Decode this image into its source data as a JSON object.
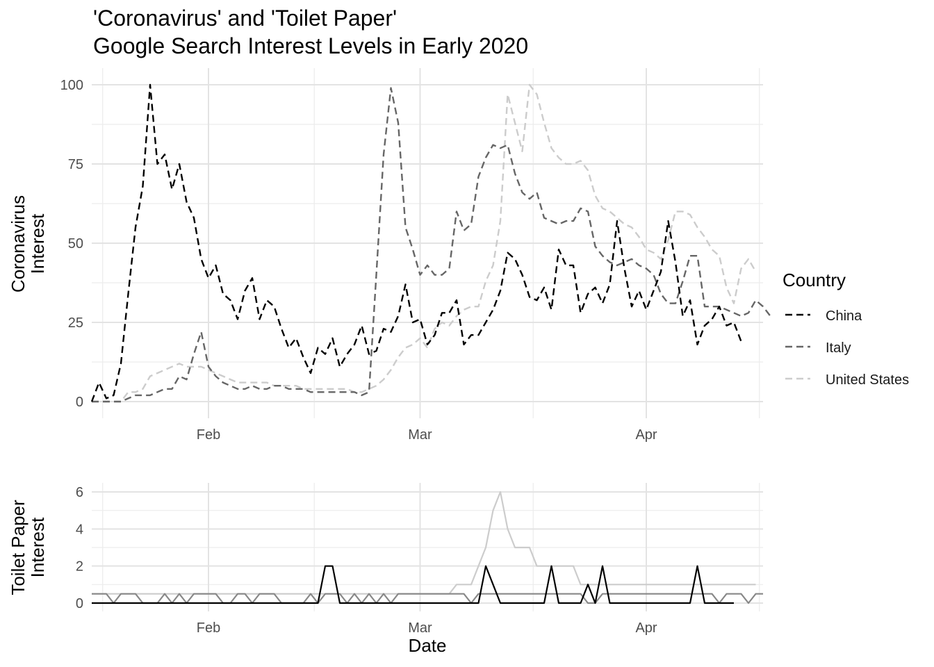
{
  "chart_data": [
    {
      "type": "line",
      "title": "'Coronavirus' and 'Toilet Paper'",
      "subtitle": "Google Search Interest Levels in Early 2020",
      "xlabel": "",
      "ylabel": "Coronavirus Interest",
      "ylabel_lines": [
        "Coronavirus",
        "Interest"
      ],
      "ylim": [
        0,
        100
      ],
      "yticks": [
        0,
        25,
        50,
        75,
        100
      ],
      "ytick_labels": [
        "0",
        "25",
        "50",
        "75",
        "100"
      ],
      "xlim": [
        "2020-01-16",
        "2020-04-17"
      ],
      "xticks": [
        "2020-02-01",
        "2020-03-01",
        "2020-04-01"
      ],
      "xtick_labels": [
        "Feb",
        "Mar",
        "Apr"
      ],
      "grid": true,
      "line_style": "dashed",
      "legend": {
        "title": "Country",
        "position": "right"
      },
      "start_date": "2020-01-16",
      "series": [
        {
          "name": "China",
          "color": "#000000",
          "values": [
            0,
            6,
            1,
            2,
            12,
            34,
            55,
            68,
            100,
            75,
            78,
            67,
            75,
            63,
            58,
            45,
            39,
            43,
            34,
            32,
            26,
            35,
            39,
            26,
            32,
            30,
            23,
            17,
            20,
            14,
            9,
            17,
            15,
            20,
            11,
            15,
            18,
            24,
            15,
            16,
            23,
            22,
            27,
            37,
            25,
            26,
            18,
            21,
            28,
            28,
            32,
            18,
            21,
            21,
            25,
            29,
            35,
            47,
            45,
            40,
            33,
            32,
            36,
            29,
            48,
            43,
            43,
            28,
            34,
            36,
            31,
            37,
            57,
            42,
            30,
            35,
            29,
            35,
            41,
            57,
            44,
            27,
            32,
            18,
            24,
            26,
            30,
            24,
            25,
            19
          ]
        },
        {
          "name": "Italy",
          "color": "#666666",
          "values": [
            0,
            0,
            0,
            0,
            0,
            1,
            2,
            2,
            2,
            3,
            4,
            4,
            8,
            7,
            15,
            22,
            11,
            8,
            6,
            5,
            4,
            4,
            5,
            4,
            4,
            5,
            5,
            4,
            4,
            4,
            3,
            3,
            3,
            3,
            3,
            3,
            3,
            2,
            3,
            40,
            78,
            99,
            88,
            55,
            48,
            40,
            43,
            40,
            40,
            42,
            60,
            54,
            56,
            71,
            77,
            81,
            80,
            81,
            72,
            66,
            64,
            66,
            58,
            57,
            56,
            57,
            57,
            61,
            60,
            49,
            46,
            44,
            43,
            44,
            45,
            43,
            42,
            40,
            34,
            31,
            31,
            38,
            46,
            46,
            30,
            30,
            30,
            29,
            28,
            27,
            28,
            32,
            30,
            27
          ]
        },
        {
          "name": "United States",
          "color": "#cccccc",
          "values": [
            0,
            0,
            0,
            0,
            0,
            3,
            3,
            4,
            8,
            9,
            10,
            11,
            12,
            11,
            11,
            11,
            10,
            9,
            8,
            7,
            6,
            6,
            6,
            6,
            6,
            5,
            5,
            5,
            5,
            4,
            4,
            4,
            4,
            4,
            4,
            4,
            3,
            3,
            4,
            5,
            7,
            10,
            14,
            17,
            18,
            20,
            17,
            23,
            25,
            24,
            27,
            29,
            30,
            30,
            38,
            43,
            57,
            97,
            88,
            79,
            100,
            97,
            88,
            80,
            77,
            75,
            75,
            76,
            73,
            65,
            61,
            60,
            58,
            56,
            55,
            52,
            48,
            47,
            45,
            51,
            60,
            60,
            59,
            55,
            52,
            48,
            46,
            36,
            31,
            42,
            45,
            41
          ]
        }
      ]
    },
    {
      "type": "line",
      "xlabel": "Date",
      "ylabel": "Toilet Paper Interest",
      "ylabel_lines": [
        "Toilet Paper",
        "Interest"
      ],
      "ylim": [
        0,
        6
      ],
      "yticks": [
        0,
        2,
        4,
        6
      ],
      "ytick_labels": [
        "0",
        "2",
        "4",
        "6"
      ],
      "xlim": [
        "2020-01-16",
        "2020-04-17"
      ],
      "xticks": [
        "2020-02-01",
        "2020-03-01",
        "2020-04-01"
      ],
      "xtick_labels": [
        "Feb",
        "Mar",
        "Apr"
      ],
      "grid": true,
      "line_style": "solid",
      "start_date": "2020-01-16",
      "series": [
        {
          "name": "China",
          "color": "#000000",
          "values": [
            0,
            0,
            0,
            0,
            0,
            0,
            0,
            0,
            0,
            0,
            0,
            0,
            0,
            0,
            0,
            0,
            0,
            0,
            0,
            0,
            0,
            0,
            0,
            0,
            0,
            0,
            0,
            0,
            0,
            0,
            0,
            0,
            2,
            2,
            0,
            0,
            0,
            0,
            0,
            0,
            0,
            0,
            0,
            0,
            0,
            0,
            0,
            0,
            0,
            0,
            0,
            0,
            0,
            0,
            2,
            1,
            0,
            0,
            0,
            0,
            0,
            0,
            0,
            2,
            0,
            0,
            0,
            0,
            1,
            0,
            2,
            0,
            0,
            0,
            0,
            0,
            0,
            0,
            0,
            0,
            0,
            0,
            0,
            2,
            0,
            0,
            0,
            0,
            0
          ]
        },
        {
          "name": "Italy",
          "color": "#888888",
          "values": [
            0.5,
            0.5,
            0.5,
            0,
            0.5,
            0.5,
            0.5,
            0,
            0,
            0,
            0.5,
            0,
            0.5,
            0,
            0.5,
            0.5,
            0.5,
            0.5,
            0,
            0,
            0.5,
            0.5,
            0,
            0.5,
            0.5,
            0.5,
            0,
            0,
            0,
            0,
            0.5,
            0,
            0.5,
            0.5,
            0.5,
            0,
            0.5,
            0,
            0.5,
            0,
            0.5,
            0,
            0.5,
            0.5,
            0.5,
            0.5,
            0.5,
            0.5,
            0.5,
            0.5,
            0.5,
            0.5,
            0,
            0.5,
            0.5,
            0.5,
            0.5,
            0.5,
            0.5,
            0.5,
            0.5,
            0.5,
            0.5,
            0.5,
            0.5,
            0.5,
            0.5,
            0.5,
            0,
            0,
            0.5,
            0.5,
            0.5,
            0.5,
            0.5,
            0.5,
            0.5,
            0.5,
            0.5,
            0.5,
            0.5,
            0.5,
            0.5,
            0.5,
            0.5,
            0.5,
            0,
            0.5,
            0.5,
            0.5,
            0,
            0.5,
            0.5
          ]
        },
        {
          "name": "United States",
          "color": "#cccccc",
          "values": [
            0.5,
            0.5,
            0.5,
            0.5,
            0.5,
            0.5,
            0.5,
            0.5,
            0.5,
            0.5,
            0.5,
            0.5,
            0.5,
            0.5,
            0.5,
            0.5,
            0.5,
            0.5,
            0.5,
            0.5,
            0.5,
            0.5,
            0.5,
            0.5,
            0.5,
            0.5,
            0.5,
            0.5,
            0.5,
            0.5,
            0.5,
            0.5,
            0.5,
            0.5,
            0.5,
            0.5,
            0.5,
            0.5,
            0.5,
            0.5,
            0.5,
            0.5,
            0.5,
            0.5,
            0.5,
            0.5,
            0.5,
            0.5,
            0.5,
            0.5,
            1,
            1,
            1,
            2,
            3,
            5,
            6,
            4,
            3,
            3,
            3,
            2,
            2,
            2,
            2,
            2,
            2,
            1,
            1,
            1,
            1,
            1,
            1,
            1,
            1,
            1,
            1,
            1,
            1,
            1,
            1,
            1,
            1,
            1,
            1,
            1,
            1,
            1,
            1,
            1,
            1,
            1
          ]
        }
      ]
    }
  ]
}
